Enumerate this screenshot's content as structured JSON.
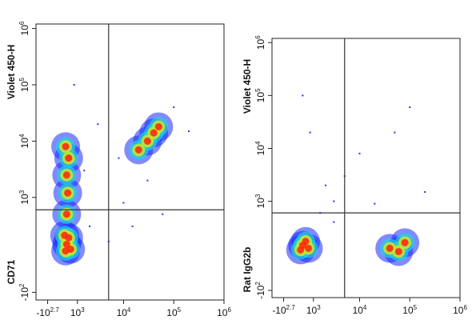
{
  "chart_data": [
    {
      "type": "density",
      "ylabel_marker": "CD71",
      "ylabel_channel": "Violet 450-H",
      "xscale": "biexponential",
      "yscale": "biexponential",
      "xlim": [
        -1200,
        1000000
      ],
      "ylim": [
        -150,
        1200000
      ],
      "xticks": [
        {
          "value": -501,
          "label": "-10",
          "exponent": "2.7"
        },
        {
          "value": 1000,
          "label": "10",
          "exponent": "3"
        },
        {
          "value": 10000,
          "label": "10",
          "exponent": "4"
        },
        {
          "value": 100000,
          "label": "10",
          "exponent": "5"
        },
        {
          "value": 1000000,
          "label": "10",
          "exponent": "6"
        }
      ],
      "yticks": [
        {
          "value": -100,
          "label": "-10",
          "exponent": "2"
        },
        {
          "value": 1000,
          "label": "10",
          "exponent": "3"
        },
        {
          "value": 10000,
          "label": "10",
          "exponent": "4"
        },
        {
          "value": 100000,
          "label": "10",
          "exponent": "5"
        },
        {
          "value": 1000000,
          "label": "10",
          "exponent": "6"
        }
      ],
      "gates": {
        "x": 5000,
        "y": 600
      },
      "clusters": {
        "x": [
          400,
          350,
          500,
          300,
          600,
          400,
          450,
          400,
          500,
          350,
          30000,
          50000,
          40000,
          20000
        ],
        "values": [
          130,
          90,
          180,
          200,
          100,
          500,
          1200,
          2500,
          5000,
          8000,
          10000,
          18000,
          14000,
          7000
        ]
      },
      "events": {
        "x": [
          2000,
          5000,
          10000,
          30000,
          200000,
          100000,
          3000,
          800,
          15000,
          60000,
          1500,
          8000
        ],
        "values": [
          300,
          150,
          800,
          2000,
          15000,
          40000,
          20000,
          100000,
          300,
          500,
          3000,
          5000
        ]
      }
    },
    {
      "type": "density",
      "ylabel_marker": "Rat IgG2b",
      "ylabel_channel": "Violet 450-H",
      "xscale": "biexponential",
      "yscale": "biexponential",
      "xlim": [
        -1200,
        1000000
      ],
      "ylim": [
        -150,
        1200000
      ],
      "xticks": [
        {
          "value": -501,
          "label": "-10",
          "exponent": "2.7"
        },
        {
          "value": 1000,
          "label": "10",
          "exponent": "3"
        },
        {
          "value": 10000,
          "label": "10",
          "exponent": "4"
        },
        {
          "value": 100000,
          "label": "10",
          "exponent": "5"
        },
        {
          "value": 1000000,
          "label": "10",
          "exponent": "6"
        }
      ],
      "yticks": [
        {
          "value": -100,
          "label": "-10",
          "exponent": "2"
        },
        {
          "value": 1000,
          "label": "10",
          "exponent": "3"
        },
        {
          "value": 10000,
          "label": "10",
          "exponent": "4"
        },
        {
          "value": 100000,
          "label": "10",
          "exponent": "5"
        },
        {
          "value": 1000000,
          "label": "10",
          "exponent": "6"
        }
      ],
      "gates": {
        "x": 5000,
        "y": 600
      },
      "clusters": {
        "x": [
          400,
          300,
          550,
          700,
          40000,
          60000,
          80000
        ],
        "values": [
          130,
          100,
          160,
          110,
          110,
          90,
          150
        ]
      },
      "events": {
        "x": [
          2000,
          3000,
          5000,
          800,
          10000,
          50000,
          200000,
          1500,
          100000,
          20000,
          3000,
          400
        ],
        "values": [
          2000,
          1000,
          3000,
          20000,
          8000,
          20000,
          1500,
          600,
          60000,
          900,
          400,
          100000
        ]
      }
    }
  ]
}
